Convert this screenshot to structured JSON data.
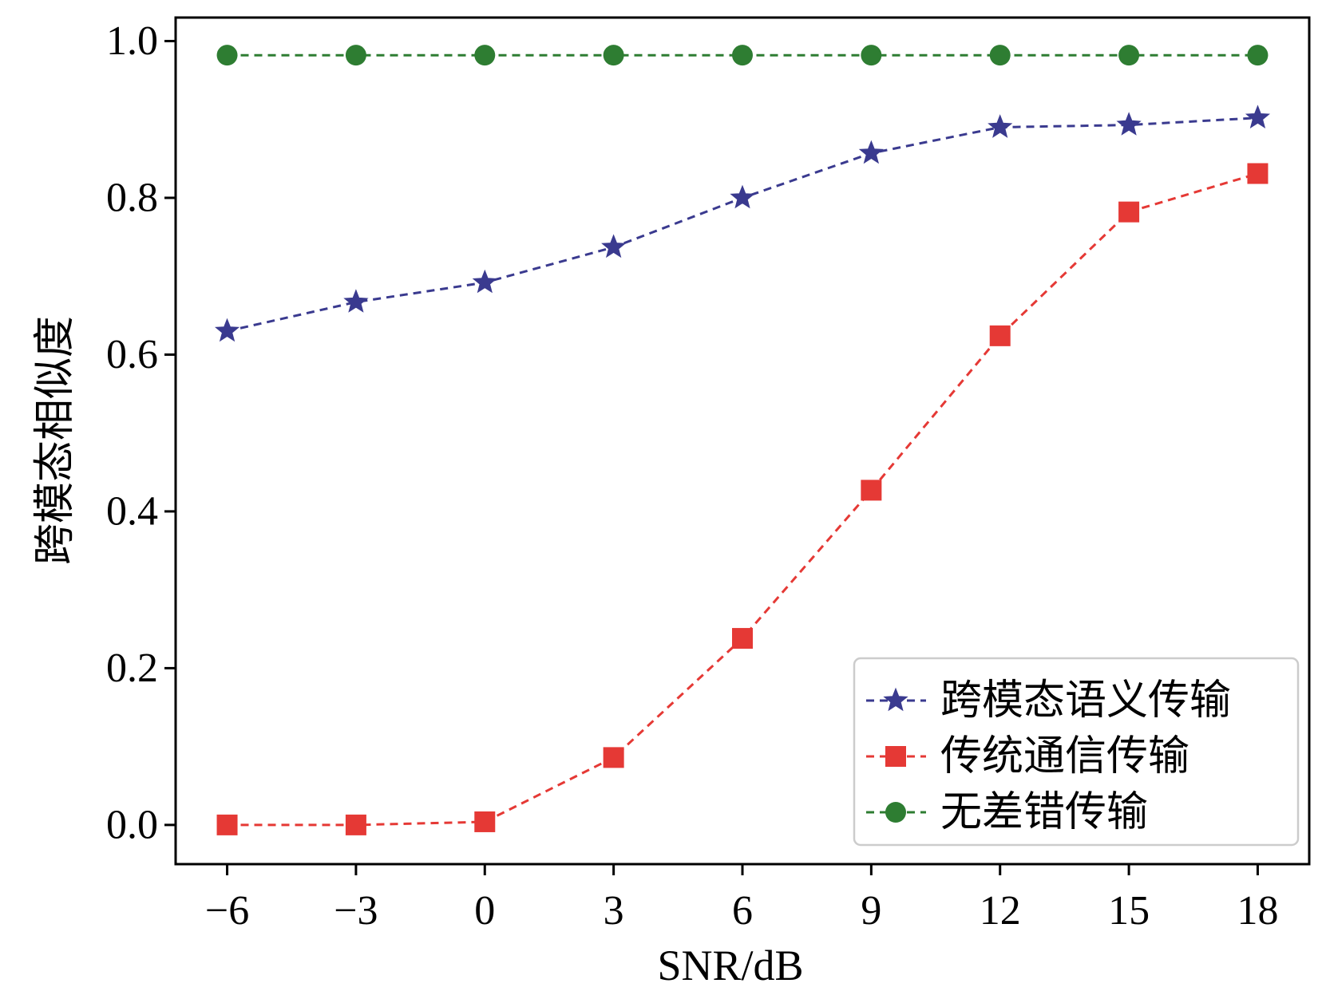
{
  "chart_data": {
    "type": "line",
    "title": "",
    "xlabel": "SNR/dB",
    "ylabel": "跨模态相似度",
    "x": [
      -6,
      -3,
      0,
      3,
      6,
      9,
      12,
      15,
      18
    ],
    "x_tick_labels": [
      "−6",
      "−3",
      "0",
      "3",
      "6",
      "9",
      "12",
      "15",
      "18"
    ],
    "y_ticks": [
      0.0,
      0.2,
      0.4,
      0.6,
      0.8,
      1.0
    ],
    "y_tick_labels": [
      "0.0",
      "0.2",
      "0.4",
      "0.6",
      "0.8",
      "1.0"
    ],
    "xlim": [
      -7.2,
      19.2
    ],
    "ylim": [
      -0.05,
      1.03
    ],
    "grid": false,
    "legend_position": "bottom-right",
    "series": [
      {
        "name": "跨模态语义传输",
        "color": "#3a3a8f",
        "marker": "star",
        "linestyle": "dashed",
        "values": [
          0.63,
          0.667,
          0.692,
          0.737,
          0.8,
          0.857,
          0.89,
          0.893,
          0.902
        ]
      },
      {
        "name": "传统通信传输",
        "color": "#e53935",
        "marker": "square",
        "linestyle": "dashed",
        "values": [
          0.0,
          0.0,
          0.004,
          0.086,
          0.238,
          0.427,
          0.624,
          0.782,
          0.831
        ]
      },
      {
        "name": "无差错传输",
        "color": "#2e7d32",
        "marker": "circle",
        "linestyle": "dashed",
        "values": [
          0.982,
          0.982,
          0.982,
          0.982,
          0.982,
          0.982,
          0.982,
          0.982,
          0.982
        ]
      }
    ]
  }
}
